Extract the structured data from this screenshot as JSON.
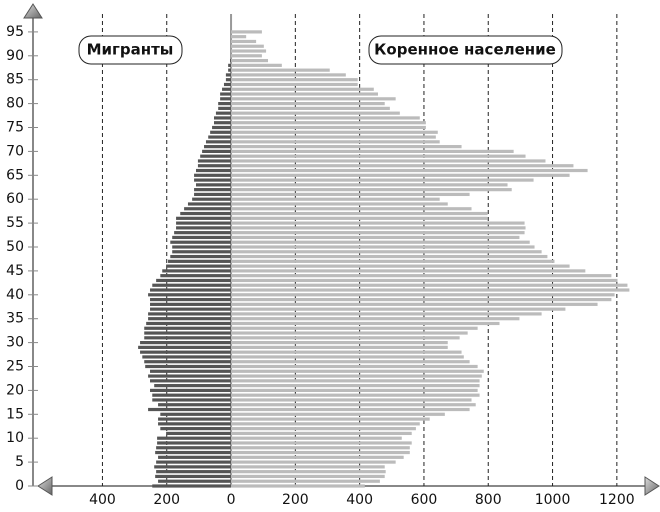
{
  "chart_data": {
    "type": "bar",
    "orientation": "horizontal",
    "y": [
      0,
      1,
      2,
      3,
      4,
      5,
      6,
      7,
      8,
      9,
      10,
      11,
      12,
      13,
      14,
      15,
      16,
      17,
      18,
      19,
      20,
      21,
      22,
      23,
      24,
      25,
      26,
      27,
      28,
      29,
      30,
      31,
      32,
      33,
      34,
      35,
      36,
      37,
      38,
      39,
      40,
      41,
      42,
      43,
      44,
      45,
      46,
      47,
      48,
      49,
      50,
      51,
      52,
      53,
      54,
      55,
      56,
      57,
      58,
      59,
      60,
      61,
      62,
      63,
      64,
      65,
      66,
      67,
      68,
      69,
      70,
      71,
      72,
      73,
      74,
      75,
      76,
      77,
      78,
      79,
      80,
      81,
      82,
      83,
      84,
      85,
      86,
      87,
      88,
      89,
      90,
      91,
      92,
      93,
      94,
      95
    ],
    "series": [
      {
        "name": "Мигранты",
        "color": "#555555",
        "values": [
          -245,
          -227,
          -236,
          -233,
          -239,
          -233,
          -227,
          -236,
          -233,
          -230,
          -230,
          -202,
          -220,
          -227,
          -227,
          -220,
          -258,
          -227,
          -245,
          -245,
          -252,
          -239,
          -252,
          -258,
          -252,
          -267,
          -270,
          -276,
          -283,
          -289,
          -283,
          -270,
          -270,
          -270,
          -264,
          -258,
          -258,
          -252,
          -252,
          -252,
          -258,
          -252,
          -245,
          -233,
          -220,
          -214,
          -202,
          -196,
          -189,
          -183,
          -183,
          -189,
          -183,
          -177,
          -171,
          -171,
          -171,
          -158,
          -146,
          -134,
          -121,
          -115,
          -115,
          -109,
          -115,
          -115,
          -109,
          -103,
          -103,
          -96,
          -90,
          -84,
          -78,
          -71,
          -65,
          -59,
          -53,
          -53,
          -47,
          -40,
          -40,
          -34,
          -34,
          -28,
          -22,
          -16,
          -16,
          -9,
          -9,
          -3,
          0,
          0,
          0,
          0,
          0,
          0
        ]
      },
      {
        "name": "Коренное население",
        "color": "#bbbbbb",
        "values": [
          416,
          463,
          478,
          481,
          478,
          512,
          537,
          556,
          556,
          562,
          531,
          562,
          575,
          587,
          618,
          665,
          742,
          761,
          748,
          773,
          767,
          773,
          773,
          780,
          786,
          767,
          742,
          724,
          717,
          674,
          674,
          711,
          736,
          767,
          835,
          897,
          966,
          1040,
          1140,
          1183,
          1193,
          1239,
          1233,
          1202,
          1183,
          1102,
          1053,
          1006,
          984,
          966,
          944,
          929,
          897,
          913,
          916,
          913,
          798,
          798,
          748,
          674,
          649,
          742,
          873,
          860,
          941,
          1053,
          1109,
          1065,
          978,
          916,
          879,
          717,
          649,
          637,
          643,
          606,
          606,
          587,
          525,
          494,
          478,
          512,
          457,
          444,
          394,
          394,
          357,
          307,
          158,
          115,
          96,
          109,
          102,
          78,
          47,
          96
        ]
      }
    ],
    "xlim": [
      -560,
      1300
    ],
    "xticks": [
      {
        "value": -400,
        "label": "400"
      },
      {
        "value": -200,
        "label": "200"
      },
      0,
      200,
      400,
      600,
      800,
      1000,
      1200
    ],
    "ylim": [
      0,
      100
    ],
    "yticks": [
      0,
      5,
      10,
      15,
      20,
      25,
      30,
      35,
      40,
      45,
      50,
      55,
      60,
      65,
      70,
      75,
      80,
      85,
      90,
      95
    ],
    "grid": true
  }
}
